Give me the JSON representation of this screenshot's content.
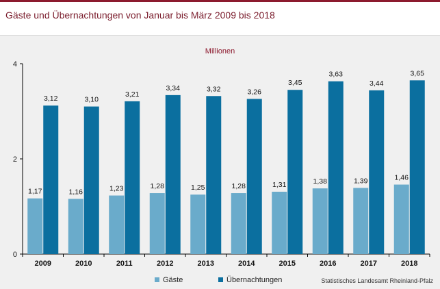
{
  "title": "Gäste und Übernachtungen von Januar bis März 2009 bis 2018",
  "unit_label": "Millionen",
  "source": "Statistisches Landesamt Rheinland-Pfalz",
  "colors": {
    "accent": "#8c1a2e",
    "gaeste": "#6aabcb",
    "uebernachtungen": "#0b6f9f"
  },
  "chart_data": {
    "type": "bar",
    "title": "Gäste und Übernachtungen von Januar bis März 2009 bis 2018",
    "ylabel": "Millionen",
    "xlabel": "",
    "ylim": [
      0,
      4
    ],
    "yticks": [
      "0",
      "2",
      "4"
    ],
    "grid": false,
    "legend": "bottom",
    "categories": [
      "2009",
      "2010",
      "2011",
      "2012",
      "2013",
      "2014",
      "2015",
      "2016",
      "2017",
      "2018"
    ],
    "series": [
      {
        "name": "Gäste",
        "color": "#6aabcb",
        "values": [
          1.17,
          1.16,
          1.23,
          1.28,
          1.25,
          1.28,
          1.31,
          1.38,
          1.39,
          1.46
        ],
        "labels": [
          "1,17",
          "1,16",
          "1,23",
          "1,28",
          "1,25",
          "1,28",
          "1,31",
          "1,38",
          "1,39",
          "1,46"
        ]
      },
      {
        "name": "Übernachtungen",
        "color": "#0b6f9f",
        "values": [
          3.12,
          3.1,
          3.21,
          3.34,
          3.32,
          3.26,
          3.45,
          3.63,
          3.44,
          3.65
        ],
        "labels": [
          "3,12",
          "3,10",
          "3,21",
          "3,34",
          "3,32",
          "3,26",
          "3,45",
          "3,63",
          "3,44",
          "3,65"
        ]
      }
    ]
  }
}
